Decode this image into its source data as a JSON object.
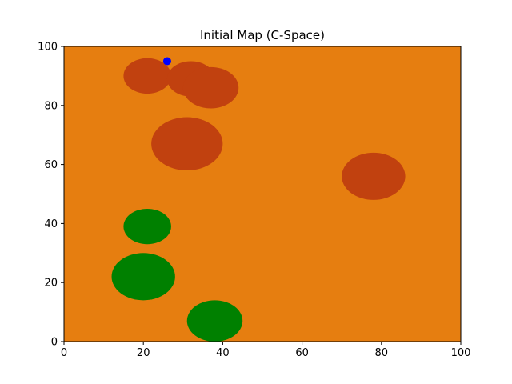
{
  "chart_data": {
    "type": "scatter",
    "title": "Initial Map (C-Space)",
    "xlabel": "",
    "ylabel": "",
    "xlim": [
      0,
      100
    ],
    "ylim": [
      0,
      100
    ],
    "x_ticks": [
      0,
      20,
      40,
      60,
      80,
      100
    ],
    "y_ticks": [
      0,
      20,
      40,
      60,
      80,
      100
    ],
    "x_tick_labels": [
      "0",
      "20",
      "40",
      "60",
      "80",
      "100"
    ],
    "y_tick_labels": [
      "0",
      "20",
      "40",
      "60",
      "80",
      "100"
    ],
    "grid": false,
    "background_color": "#e67e10",
    "regions": [
      {
        "kind": "obstacle",
        "color": "#c1410f",
        "cx": 21,
        "cy": 90,
        "rx": 6,
        "ry": 6
      },
      {
        "kind": "obstacle",
        "color": "#c1410f",
        "cx": 32,
        "cy": 89,
        "rx": 6,
        "ry": 6
      },
      {
        "kind": "obstacle",
        "color": "#c1410f",
        "cx": 37,
        "cy": 86,
        "rx": 7,
        "ry": 7
      },
      {
        "kind": "obstacle",
        "color": "#c1410f",
        "cx": 31,
        "cy": 67,
        "rx": 9,
        "ry": 9
      },
      {
        "kind": "obstacle",
        "color": "#c1410f",
        "cx": 78,
        "cy": 56,
        "rx": 8,
        "ry": 8
      },
      {
        "kind": "goal",
        "color": "#008000",
        "cx": 21,
        "cy": 39,
        "rx": 6,
        "ry": 6
      },
      {
        "kind": "goal",
        "color": "#008000",
        "cx": 20,
        "cy": 22,
        "rx": 8,
        "ry": 8
      },
      {
        "kind": "goal",
        "color": "#008000",
        "cx": 38,
        "cy": 7,
        "rx": 7,
        "ry": 7
      }
    ],
    "points": [
      {
        "x": 26,
        "y": 95,
        "color": "#0000ff"
      }
    ]
  }
}
